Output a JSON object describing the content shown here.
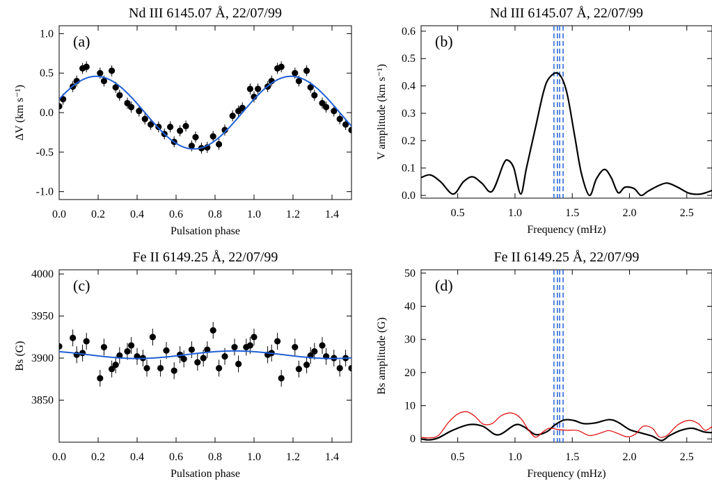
{
  "chart_data": [
    {
      "type": "scatter",
      "panel_label": "(a)",
      "title": "Nd III 6145.07 Å, 22/07/99",
      "xlabel": "Pulsation phase",
      "ylabel": "ΔV (km s⁻¹)",
      "xlim": [
        0.0,
        1.5
      ],
      "ylim": [
        -1.1,
        1.1
      ],
      "xticks": [
        0.0,
        0.2,
        0.4,
        0.6,
        0.8,
        1.0,
        1.2,
        1.4
      ],
      "xtick_labels": [
        "0.0",
        "0.2",
        "0.4",
        "0.6",
        "0.8",
        "1.0",
        "1.2",
        "1.4"
      ],
      "yticks": [
        -1.0,
        -0.5,
        0.0,
        0.5,
        1.0
      ],
      "ytick_labels": [
        "-1.0",
        "-0.5",
        "0.0",
        "0.5",
        "1.0"
      ],
      "series": [
        {
          "kind": "points",
          "color": "#000000",
          "x": [
            0.0,
            0.02,
            0.07,
            0.09,
            0.12,
            0.14,
            0.21,
            0.23,
            0.27,
            0.29,
            0.31,
            0.35,
            0.37,
            0.41,
            0.44,
            0.47,
            0.51,
            0.54,
            0.57,
            0.59,
            0.62,
            0.65,
            0.68,
            0.7,
            0.73,
            0.76,
            0.79,
            0.82,
            0.85,
            0.89,
            0.92,
            0.94,
            0.98,
            1.0,
            1.02,
            1.07,
            1.09,
            1.12,
            1.14,
            1.21,
            1.23,
            1.27,
            1.29,
            1.31,
            1.35,
            1.37,
            1.41,
            1.44,
            1.47,
            1.5
          ],
          "y": [
            0.08,
            0.17,
            0.33,
            0.4,
            0.56,
            0.58,
            0.5,
            0.4,
            0.53,
            0.32,
            0.22,
            0.12,
            0.07,
            0.02,
            -0.08,
            -0.15,
            -0.18,
            -0.27,
            -0.18,
            -0.37,
            -0.23,
            -0.17,
            -0.42,
            -0.31,
            -0.45,
            -0.44,
            -0.3,
            -0.4,
            -0.22,
            -0.04,
            0.02,
            0.06,
            0.3,
            0.2,
            0.3,
            0.33,
            0.4,
            0.56,
            0.58,
            0.5,
            0.4,
            0.53,
            0.32,
            0.22,
            0.12,
            0.07,
            0.02,
            -0.08,
            -0.15,
            -0.22
          ],
          "yerr": 0.07
        },
        {
          "kind": "fit",
          "color": "#1f5fd6",
          "amplitude": 0.46,
          "phase_of_max": 0.19,
          "offset": 0.0
        }
      ]
    },
    {
      "type": "line",
      "panel_label": "(b)",
      "title": "Nd III 6145.07 Å, 22/07/99",
      "xlabel": "Frequency (mHz)",
      "ylabel": "V amplitude (km s⁻¹)",
      "xlim": [
        0.18,
        2.72
      ],
      "ylim": [
        -0.01,
        0.62
      ],
      "xticks": [
        0.5,
        1.0,
        1.5,
        2.0,
        2.5
      ],
      "xtick_labels": [
        "0.5",
        "1.0",
        "1.5",
        "2.0",
        "2.5"
      ],
      "yticks": [
        0.0,
        0.1,
        0.2,
        0.3,
        0.4,
        0.5,
        0.6
      ],
      "ytick_labels": [
        "0.0",
        "0.1",
        "0.2",
        "0.3",
        "0.4",
        "0.5",
        "0.6"
      ],
      "vlines": [
        1.34,
        1.37,
        1.39,
        1.42
      ],
      "vline_color": "#1f5fd6",
      "series": [
        {
          "color": "#000000",
          "x": [
            0.18,
            0.26,
            0.35,
            0.46,
            0.55,
            0.63,
            0.71,
            0.8,
            0.9,
            0.94,
            0.99,
            1.05,
            1.1,
            1.18,
            1.25,
            1.3,
            1.38,
            1.45,
            1.52,
            1.58,
            1.65,
            1.71,
            1.78,
            1.84,
            1.9,
            1.96,
            2.04,
            2.1,
            2.16,
            2.25,
            2.33,
            2.42,
            2.52,
            2.62,
            2.72
          ],
          "y": [
            0.065,
            0.075,
            0.05,
            0.005,
            0.05,
            0.068,
            0.045,
            0.015,
            0.115,
            0.128,
            0.1,
            0.005,
            0.1,
            0.25,
            0.38,
            0.43,
            0.445,
            0.38,
            0.22,
            0.08,
            0.0,
            0.06,
            0.095,
            0.065,
            0.01,
            0.03,
            0.025,
            0.0,
            0.015,
            0.035,
            0.045,
            0.03,
            0.008,
            0.005,
            0.018
          ]
        }
      ]
    },
    {
      "type": "scatter",
      "panel_label": "(c)",
      "title": "Fe II 6149.25 Å, 22/07/99",
      "xlabel": "Pulsation phase",
      "ylabel": "Bs (G)",
      "xlim": [
        0.0,
        1.5
      ],
      "ylim": [
        3800,
        4005
      ],
      "xticks": [
        0.0,
        0.2,
        0.4,
        0.6,
        0.8,
        1.0,
        1.2,
        1.4
      ],
      "xtick_labels": [
        "0.0",
        "0.2",
        "0.4",
        "0.6",
        "0.8",
        "1.0",
        "1.2",
        "1.4"
      ],
      "yticks": [
        3850,
        3900,
        3950,
        4000
      ],
      "ytick_labels": [
        "3850",
        "3900",
        "3950",
        "4000"
      ],
      "series": [
        {
          "kind": "points",
          "color": "#000000",
          "x": [
            0.0,
            0.07,
            0.09,
            0.12,
            0.14,
            0.21,
            0.23,
            0.27,
            0.29,
            0.31,
            0.35,
            0.37,
            0.4,
            0.43,
            0.45,
            0.48,
            0.52,
            0.55,
            0.59,
            0.62,
            0.64,
            0.68,
            0.71,
            0.74,
            0.76,
            0.79,
            0.82,
            0.85,
            0.9,
            0.92,
            0.96,
            0.98,
            1.0,
            1.07,
            1.09,
            1.12,
            1.14,
            1.21,
            1.23,
            1.27,
            1.29,
            1.31,
            1.35,
            1.37,
            1.41,
            1.44,
            1.47,
            1.5
          ],
          "y": [
            3914,
            3924,
            3904,
            3906,
            3920,
            3876,
            3913,
            3887,
            3892,
            3903,
            3908,
            3915,
            3902,
            3900,
            3888,
            3925,
            3888,
            3909,
            3885,
            3904,
            3899,
            3910,
            3895,
            3900,
            3910,
            3933,
            3888,
            3902,
            3913,
            3893,
            3913,
            3915,
            3925,
            3904,
            3906,
            3920,
            3876,
            3913,
            3887,
            3892,
            3903,
            3908,
            3915,
            3902,
            3900,
            3888,
            3900,
            3888
          ],
          "yerr": 10
        },
        {
          "kind": "fit",
          "color": "#1f5fd6",
          "amplitude": 4.5,
          "phase_of_max": 0.9,
          "offset": 3904
        }
      ]
    },
    {
      "type": "line",
      "panel_label": "(d)",
      "title": "Fe II 6149.25 Å, 22/07/99",
      "xlabel": "Frequency (mHz)",
      "ylabel": "Bs amplitude (G)",
      "xlim": [
        0.18,
        2.72
      ],
      "ylim": [
        -1,
        51
      ],
      "xticks": [
        0.5,
        1.0,
        1.5,
        2.0,
        2.5
      ],
      "xtick_labels": [
        "0.5",
        "1.0",
        "1.5",
        "2.0",
        "2.5"
      ],
      "yticks": [
        0,
        10,
        20,
        30,
        40,
        50
      ],
      "ytick_labels": [
        "0",
        "10",
        "20",
        "30",
        "40",
        "50"
      ],
      "vlines": [
        1.34,
        1.37,
        1.39,
        1.42
      ],
      "vline_color": "#1f5fd6",
      "series": [
        {
          "color": "#000000",
          "x": [
            0.18,
            0.25,
            0.33,
            0.45,
            0.6,
            0.72,
            0.85,
            1.0,
            1.08,
            1.18,
            1.28,
            1.34,
            1.4,
            1.45,
            1.52,
            1.6,
            1.7,
            1.82,
            1.9,
            2.0,
            2.1,
            2.2,
            2.28,
            2.35,
            2.45,
            2.55,
            2.65,
            2.72
          ],
          "y": [
            0.0,
            -0.3,
            0.3,
            2.5,
            4.3,
            3.8,
            1.2,
            4.2,
            3.6,
            1.3,
            2.2,
            4.0,
            5.3,
            5.8,
            5.5,
            4.6,
            4.8,
            5.8,
            5.0,
            2.8,
            1.8,
            0.8,
            -0.5,
            1.0,
            2.6,
            3.2,
            2.1,
            1.9
          ]
        },
        {
          "color": "#e00000",
          "x": [
            0.18,
            0.25,
            0.33,
            0.42,
            0.5,
            0.58,
            0.65,
            0.72,
            0.8,
            0.88,
            0.97,
            1.05,
            1.12,
            1.18,
            1.24,
            1.3,
            1.38,
            1.45,
            1.55,
            1.65,
            1.75,
            1.82,
            1.9,
            1.98,
            2.05,
            2.12,
            2.2,
            2.26,
            2.33,
            2.42,
            2.52,
            2.6,
            2.66,
            2.72
          ],
          "y": [
            0.5,
            0.3,
            1.0,
            5.0,
            7.5,
            8.2,
            6.8,
            4.5,
            4.6,
            7.0,
            7.8,
            6.2,
            2.6,
            0.5,
            2.0,
            3.2,
            2.8,
            2.6,
            2.5,
            1.0,
            1.8,
            2.5,
            1.6,
            0.6,
            1.4,
            3.8,
            3.2,
            0.6,
            1.1,
            4.2,
            5.6,
            4.6,
            2.6,
            3.7
          ]
        }
      ]
    }
  ]
}
